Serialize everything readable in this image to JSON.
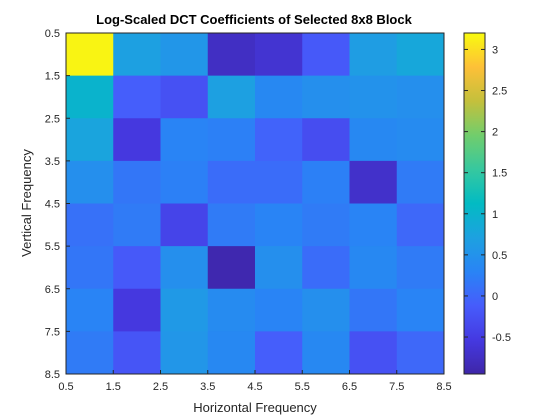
{
  "chart_data": {
    "type": "heatmap",
    "title": "Log-Scaled DCT Coefficients of Selected 8x8 Block",
    "xlabel": "Horizontal Frequency",
    "ylabel": "Vertical Frequency",
    "xlim": [
      0.5,
      8.5
    ],
    "ylim": [
      0.5,
      8.5
    ],
    "y_direction": "reverse",
    "xticks": [
      0.5,
      1.5,
      2.5,
      3.5,
      4.5,
      5.5,
      6.5,
      7.5,
      8.5
    ],
    "xtick_labels": [
      "0.5",
      "1.5",
      "2.5",
      "3.5",
      "4.5",
      "5.5",
      "6.5",
      "7.5",
      "8.5"
    ],
    "yticks": [
      0.5,
      1.5,
      2.5,
      3.5,
      4.5,
      5.5,
      6.5,
      7.5,
      8.5
    ],
    "ytick_labels": [
      "0.5",
      "1.5",
      "2.5",
      "3.5",
      "4.5",
      "5.5",
      "6.5",
      "7.5",
      "8.5"
    ],
    "colormap": "parula",
    "clim": [
      -0.95,
      3.2
    ],
    "colorbar": {
      "ticks": [
        -0.5,
        0,
        0.5,
        1,
        1.5,
        2,
        2.5,
        3
      ],
      "tick_labels": [
        "-0.5",
        "0",
        "0.5",
        "1",
        "1.5",
        "2",
        "2.5",
        "3"
      ]
    },
    "grid": false,
    "values": [
      [
        3.15,
        0.7,
        0.55,
        -0.75,
        -0.65,
        -0.15,
        0.65,
        0.8
      ],
      [
        1.0,
        -0.1,
        -0.25,
        0.7,
        0.35,
        0.45,
        0.5,
        0.45
      ],
      [
        0.75,
        -0.55,
        0.3,
        0.25,
        -0.05,
        -0.3,
        0.35,
        0.4
      ],
      [
        0.45,
        0.15,
        0.25,
        0.05,
        0.05,
        0.25,
        -0.7,
        0.2
      ],
      [
        0.1,
        0.2,
        -0.4,
        0.2,
        0.3,
        0.2,
        0.3,
        0.0
      ],
      [
        0.15,
        -0.15,
        0.45,
        -0.9,
        0.45,
        0.05,
        0.35,
        0.2
      ],
      [
        0.3,
        -0.55,
        0.6,
        0.4,
        0.3,
        0.45,
        0.15,
        0.3
      ],
      [
        0.2,
        -0.2,
        0.55,
        0.35,
        -0.1,
        0.35,
        -0.25,
        0.0
      ]
    ]
  }
}
